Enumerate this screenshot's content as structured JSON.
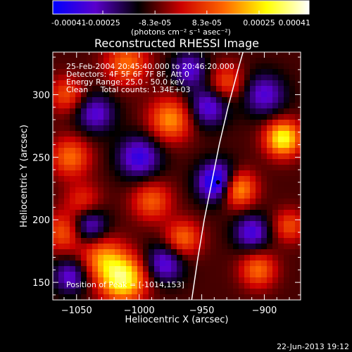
{
  "colorbar": {
    "tick_labels": [
      "-0.00041",
      "-0.00025",
      "-8.3e-05",
      "8.3e-05",
      "0.00025",
      "0.00041"
    ],
    "tick_values": [
      -0.00041,
      -0.00025,
      -8.3e-05,
      8.3e-05,
      0.00025,
      0.00041
    ],
    "range": [
      -0.00041,
      0.00041
    ],
    "unit_label": "(photons cm⁻² s⁻¹ asec⁻²)",
    "colors": [
      "#0000ff",
      "#5a00cc",
      "#000000",
      "#cc0000",
      "#ff6600",
      "#ffff00",
      "#ffffff"
    ]
  },
  "chart_data": {
    "type": "heatmap",
    "title": "Reconstructed RHESSI Image",
    "xlabel": "Heliocentric X (arcsec)",
    "ylabel": "Heliocentric Y (arcsec)",
    "xlim": [
      -1069,
      -871
    ],
    "ylim": [
      136,
      334
    ],
    "xticks": [
      -1050,
      -1000,
      -950,
      -900
    ],
    "xtick_labels": [
      "−1050",
      "−1000",
      "−950",
      "−900"
    ],
    "yticks": [
      150,
      200,
      250,
      300
    ],
    "ytick_labels": [
      "150",
      "200",
      "250",
      "300"
    ],
    "grid": false,
    "info_lines": [
      "25-Feb-2004 20:45:40.000 to 20:46:20.000",
      "Detectors: 4F 5F 6F 7F 8F, Att 0",
      "Energy Range: 25.0 - 50.0 keV",
      "Clean     Total counts: 1.34E+03"
    ],
    "position_of_peak": "Position of Peak = [-1014,153]",
    "peak_marker": {
      "x": -937,
      "y": 230
    },
    "limb": [
      {
        "x": -958,
        "y": 136
      },
      {
        "x": -953,
        "y": 170
      },
      {
        "x": -948,
        "y": 200
      },
      {
        "x": -942,
        "y": 230
      },
      {
        "x": -936,
        "y": 260
      },
      {
        "x": -929,
        "y": 290
      },
      {
        "x": -921,
        "y": 320
      },
      {
        "x": -917,
        "y": 334
      }
    ],
    "blobs": [
      {
        "x": -1013,
        "y": 153,
        "v": 1.0,
        "r": 13
      },
      {
        "x": -1030,
        "y": 170,
        "v": 0.55,
        "r": 12
      },
      {
        "x": -1060,
        "y": 190,
        "v": 0.5,
        "r": 11
      },
      {
        "x": -1045,
        "y": 215,
        "v": 0.35,
        "r": 10
      },
      {
        "x": -1055,
        "y": 250,
        "v": 0.55,
        "r": 11
      },
      {
        "x": -1058,
        "y": 300,
        "v": 0.45,
        "r": 10
      },
      {
        "x": -1010,
        "y": 325,
        "v": 0.55,
        "r": 12
      },
      {
        "x": -975,
        "y": 280,
        "v": 0.65,
        "r": 12
      },
      {
        "x": -990,
        "y": 215,
        "v": 0.5,
        "r": 11
      },
      {
        "x": -965,
        "y": 185,
        "v": 0.55,
        "r": 10
      },
      {
        "x": -922,
        "y": 225,
        "v": 0.85,
        "r": 10
      },
      {
        "x": -885,
        "y": 265,
        "v": 0.95,
        "r": 10
      },
      {
        "x": -905,
        "y": 160,
        "v": 0.55,
        "r": 10
      },
      {
        "x": -930,
        "y": 310,
        "v": 0.45,
        "r": 10
      },
      {
        "x": -880,
        "y": 195,
        "v": 0.45,
        "r": 9
      },
      {
        "x": -937,
        "y": 230,
        "v": -0.9,
        "r": 11
      },
      {
        "x": -1000,
        "y": 250,
        "v": -0.6,
        "r": 12
      },
      {
        "x": -1040,
        "y": 195,
        "v": -0.55,
        "r": 10
      },
      {
        "x": -945,
        "y": 290,
        "v": -0.55,
        "r": 11
      },
      {
        "x": -900,
        "y": 300,
        "v": -0.5,
        "r": 12
      },
      {
        "x": -980,
        "y": 165,
        "v": -0.55,
        "r": 11
      },
      {
        "x": -910,
        "y": 190,
        "v": -0.55,
        "r": 10
      },
      {
        "x": -1055,
        "y": 155,
        "v": -0.5,
        "r": 10
      },
      {
        "x": -1035,
        "y": 285,
        "v": -0.5,
        "r": 11
      },
      {
        "x": -960,
        "y": 320,
        "v": -0.5,
        "r": 10
      }
    ]
  },
  "footer": {
    "timestamp": "22-Jun-2013 19:12"
  }
}
